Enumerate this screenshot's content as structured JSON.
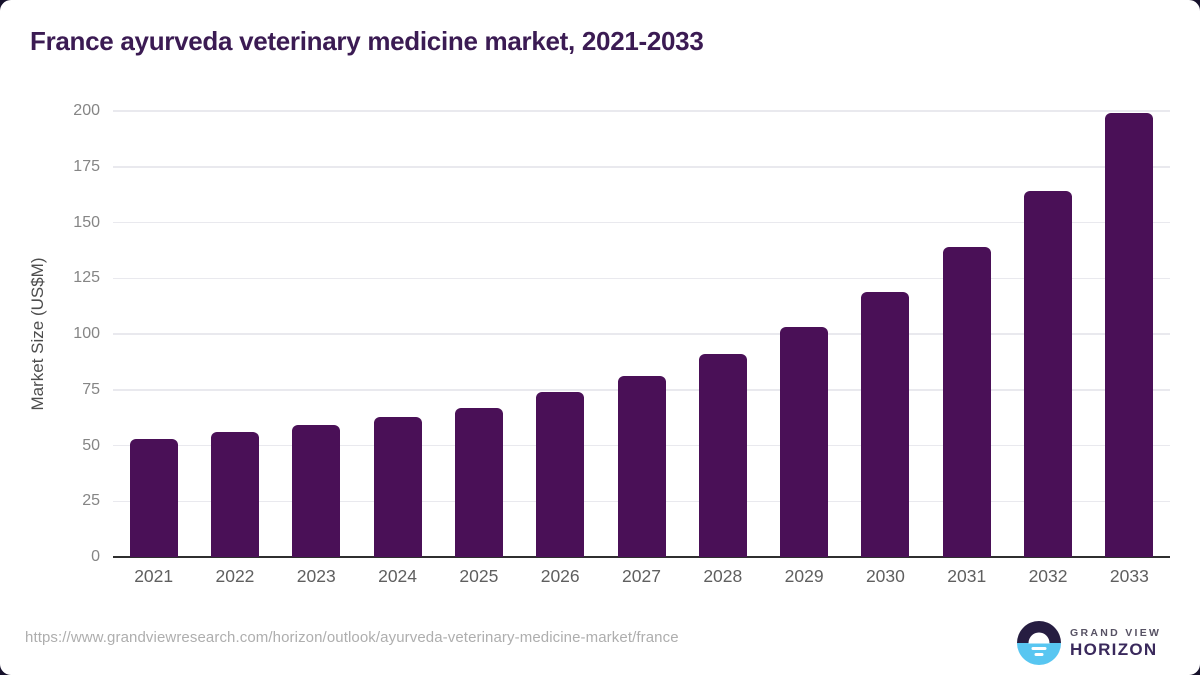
{
  "header": {
    "title": "France ayurveda veterinary medicine market, 2021-2033"
  },
  "chart_data": {
    "type": "bar",
    "title": "France ayurveda veterinary medicine market, 2021-2033",
    "categories": [
      "2021",
      "2022",
      "2023",
      "2024",
      "2025",
      "2026",
      "2027",
      "2028",
      "2029",
      "2030",
      "2031",
      "2032",
      "2033"
    ],
    "values": [
      53,
      56,
      59,
      63,
      67,
      74,
      81,
      91,
      103,
      119,
      139,
      164,
      199
    ],
    "xlabel": "",
    "ylabel": "Market Size (US$M)",
    "ylim": [
      0,
      200
    ],
    "yticks": [
      0,
      25,
      50,
      75,
      100,
      125,
      150,
      175,
      200
    ],
    "grid": "horizontal",
    "legend_position": "none",
    "bar_color": "#4a1057"
  },
  "footer": {
    "source_url": "https://www.grandviewresearch.com/horizon/outlook/ayurveda-veterinary-medicine-market/france",
    "logo": {
      "line1": "GRAND VIEW",
      "line2": "HORIZON"
    }
  },
  "colors": {
    "title_text": "#3b1b53",
    "bar_fill": "#4a1057",
    "gridline": "#e9e9ee",
    "axis_line": "#2f2f2f",
    "tick_text": "#858585",
    "x_tick_text": "#5f5f5f",
    "url_text": "#aeaeae",
    "logo_sky": "#261d41",
    "logo_sea": "#58c6f1"
  }
}
